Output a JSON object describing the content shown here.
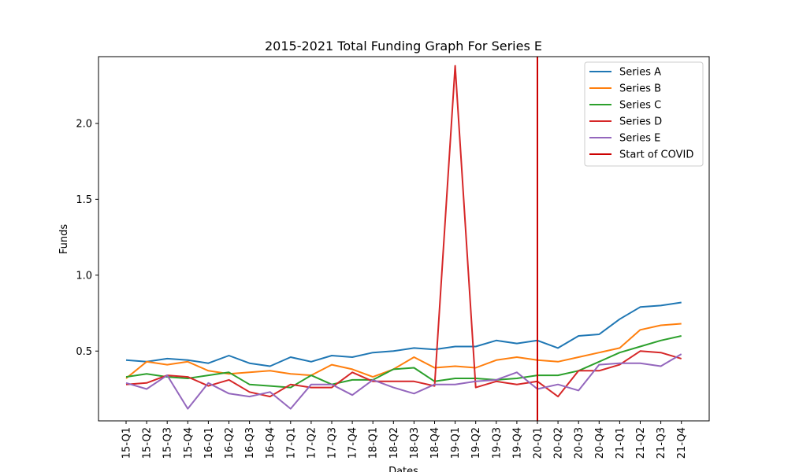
{
  "chart_data": {
    "type": "line",
    "title": "2015-2021 Total Funding Graph For Series E",
    "xlabel": "Dates",
    "ylabel": "Funds",
    "ylim": [
      0.04,
      2.44
    ],
    "yticks": [
      "0.5",
      "1.0",
      "1.5",
      "2.0"
    ],
    "grid": false,
    "legend_position": "top-right",
    "categories": [
      "15-Q1",
      "15-Q2",
      "15-Q3",
      "15-Q4",
      "16-Q1",
      "16-Q2",
      "16-Q3",
      "16-Q4",
      "17-Q1",
      "17-Q2",
      "17-Q3",
      "17-Q4",
      "18-Q1",
      "18-Q2",
      "18-Q3",
      "18-Q4",
      "19-Q1",
      "19-Q2",
      "19-Q3",
      "19-Q4",
      "20-Q1",
      "20-Q2",
      "20-Q3",
      "20-Q4",
      "21-Q1",
      "21-Q2",
      "21-Q3",
      "21-Q4"
    ],
    "series": [
      {
        "name": "Series A",
        "color": "#1f77b4",
        "values": [
          0.44,
          0.43,
          0.45,
          0.44,
          0.42,
          0.47,
          0.42,
          0.4,
          0.46,
          0.43,
          0.47,
          0.46,
          0.49,
          0.5,
          0.52,
          0.51,
          0.53,
          0.53,
          0.57,
          0.55,
          0.57,
          0.52,
          0.6,
          0.61,
          0.71,
          0.79,
          0.8,
          0.82
        ]
      },
      {
        "name": "Series B",
        "color": "#ff7f0e",
        "values": [
          0.32,
          0.43,
          0.41,
          0.43,
          0.37,
          0.35,
          0.36,
          0.37,
          0.35,
          0.34,
          0.41,
          0.38,
          0.33,
          0.38,
          0.46,
          0.39,
          0.4,
          0.39,
          0.44,
          0.46,
          0.44,
          0.43,
          0.46,
          0.49,
          0.52,
          0.64,
          0.67,
          0.68
        ]
      },
      {
        "name": "Series C",
        "color": "#2ca02c",
        "values": [
          0.33,
          0.35,
          0.33,
          0.32,
          0.34,
          0.36,
          0.28,
          0.27,
          0.26,
          0.34,
          0.28,
          0.31,
          0.31,
          0.38,
          0.39,
          0.3,
          0.32,
          0.32,
          0.31,
          0.32,
          0.34,
          0.34,
          0.37,
          0.43,
          0.49,
          0.53,
          0.57,
          0.6
        ]
      },
      {
        "name": "Series D",
        "color": "#d62728",
        "values": [
          0.28,
          0.29,
          0.34,
          0.33,
          0.27,
          0.31,
          0.23,
          0.2,
          0.28,
          0.26,
          0.26,
          0.36,
          0.3,
          0.3,
          0.3,
          0.27,
          2.38,
          0.26,
          0.3,
          0.28,
          0.3,
          0.2,
          0.37,
          0.37,
          0.41,
          0.5,
          0.49,
          0.45
        ]
      },
      {
        "name": "Series E",
        "color": "#9467bd",
        "values": [
          0.29,
          0.25,
          0.34,
          0.12,
          0.29,
          0.22,
          0.2,
          0.23,
          0.12,
          0.28,
          0.28,
          0.21,
          0.31,
          0.26,
          0.22,
          0.28,
          0.28,
          0.3,
          0.31,
          0.36,
          0.25,
          0.28,
          0.24,
          0.41,
          0.42,
          0.42,
          0.4,
          0.48
        ]
      }
    ],
    "vline": {
      "name": "Start of COVID",
      "x": "20-Q1",
      "color": "#cc0000"
    }
  }
}
